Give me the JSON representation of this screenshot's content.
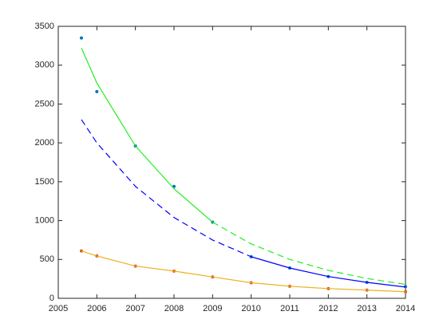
{
  "chart_data": {
    "type": "line",
    "xlim": [
      2005,
      2014
    ],
    "ylim": [
      0,
      3500
    ],
    "xticks": [
      2005,
      2006,
      2007,
      2008,
      2009,
      2010,
      2011,
      2012,
      2013,
      2014
    ],
    "yticks": [
      0,
      500,
      1000,
      1500,
      2000,
      2500,
      3000,
      3500
    ],
    "grid": false,
    "series": [
      {
        "mode": "markers",
        "color": "#0072bd",
        "x": [
          2005.6,
          2006,
          2007,
          2008,
          2009,
          2010,
          2011,
          2012,
          2013,
          2014
        ],
        "values": [
          3350,
          2660,
          1960,
          1440,
          980,
          535,
          390,
          280,
          205,
          150
        ]
      },
      {
        "mode": "markers",
        "color": "#d95319",
        "x": [
          2005.6,
          2006,
          2007,
          2008,
          2009,
          2010,
          2011,
          2012,
          2013,
          2014
        ],
        "values": [
          610,
          545,
          415,
          350,
          275,
          200,
          155,
          125,
          105,
          85
        ]
      },
      {
        "mode": "line",
        "dash": false,
        "color": "#22ee22",
        "x": [
          2005.6,
          2006,
          2007,
          2008,
          2009
        ],
        "values": [
          3220,
          2770,
          1960,
          1410,
          980
        ]
      },
      {
        "mode": "line",
        "dash": true,
        "color": "#22ee22",
        "x": [
          2009,
          2010,
          2011,
          2012,
          2013,
          2014
        ],
        "values": [
          980,
          700,
          500,
          360,
          255,
          180
        ]
      },
      {
        "mode": "line",
        "dash": true,
        "color": "#0000ff",
        "x": [
          2005.6,
          2006,
          2007,
          2008,
          2009,
          2010
        ],
        "values": [
          2300,
          2000,
          1440,
          1040,
          750,
          535
        ]
      },
      {
        "mode": "line",
        "dash": false,
        "color": "#0000ff",
        "x": [
          2010,
          2011,
          2012,
          2013,
          2014
        ],
        "values": [
          535,
          390,
          280,
          205,
          145
        ]
      },
      {
        "mode": "line",
        "dash": false,
        "color": "#edb120",
        "x": [
          2005.6,
          2006,
          2007,
          2008,
          2009,
          2010,
          2011,
          2012,
          2013,
          2014
        ],
        "values": [
          610,
          545,
          415,
          350,
          275,
          200,
          155,
          125,
          105,
          85
        ]
      }
    ]
  }
}
